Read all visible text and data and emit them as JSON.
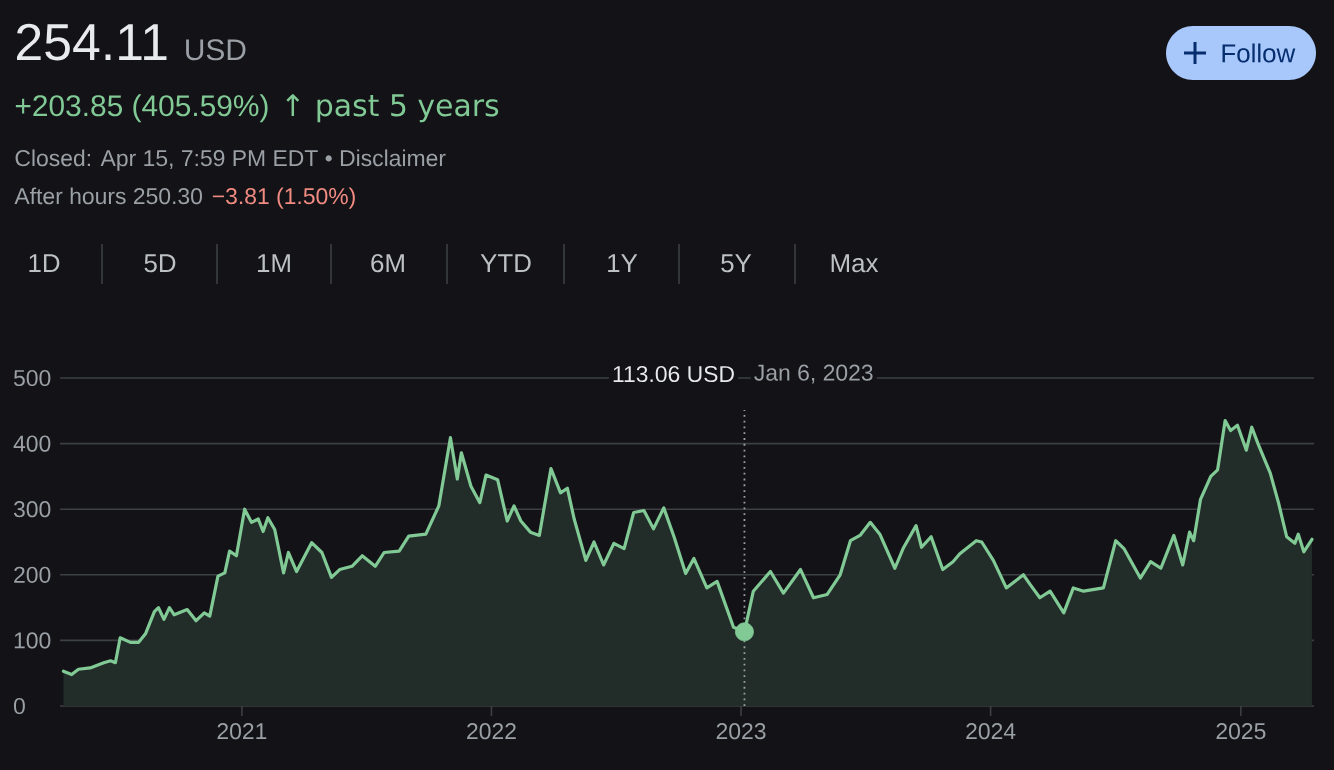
{
  "chart_data": {
    "type": "area",
    "title": "254.11",
    "annotations": [
      "USD",
      "+203.85 (405.59%)",
      "↑ past 5 years",
      "Closed: Apr 15, 7:59 PM EDT • Disclaimer",
      "After hours 250.30",
      "−3.81 (1.50%)",
      "Follow",
      "1D",
      "5D",
      "1M",
      "6M",
      "YTD",
      "1Y",
      "5Y",
      "Max",
      "113.06 USD"
    ],
    "xlim": [
      "2020-04-10",
      "2025-04-18"
    ],
    "xticks": [
      "2021",
      "2022",
      "2023",
      "2024",
      "2025"
    ],
    "ylim": [
      0,
      500
    ],
    "yticks": [
      0,
      100,
      200,
      300,
      400,
      500
    ],
    "grid": "y",
    "ref_lines": [
      {
        "axis": "x",
        "value": "2023-01-06",
        "label": "Jan 6, 2023",
        "line_style": "dotted",
        "color": "#9aa0a6"
      }
    ],
    "series": [
      {
        "type": "scatter",
        "color": "#81c995",
        "marker": "circle",
        "x": [
          "2023-01-06"
        ],
        "values": [
          113.06
        ]
      },
      {
        "color": "#81c995",
        "x": [
          "2020-04-15",
          "2020-04-27",
          "2020-05-07",
          "2020-05-24",
          "2020-06-13",
          "2020-06-23",
          "2020-06-30",
          "2020-07-07",
          "2020-07-22",
          "2020-08-03",
          "2020-08-13",
          "2020-08-26",
          "2020-09-01",
          "2020-09-09",
          "2020-09-17",
          "2020-09-24",
          "2020-10-13",
          "2020-10-26",
          "2020-11-07",
          "2020-11-15",
          "2020-11-27",
          "2020-12-07",
          "2020-12-14",
          "2020-12-24",
          "2021-01-05",
          "2021-01-15",
          "2021-01-25",
          "2021-02-01",
          "2021-02-08",
          "2021-02-18",
          "2021-03-03",
          "2021-03-10",
          "2021-03-22",
          "2021-04-13",
          "2021-04-28",
          "2021-05-12",
          "2021-05-24",
          "2021-06-11",
          "2021-06-26",
          "2021-07-15",
          "2021-07-28",
          "2021-08-19",
          "2021-09-02",
          "2021-09-27",
          "2021-10-16",
          "2021-11-02",
          "2021-11-12",
          "2021-11-18",
          "2021-12-02",
          "2021-12-15",
          "2021-12-24",
          "2022-01-10",
          "2022-01-24",
          "2022-02-03",
          "2022-02-13",
          "2022-02-27",
          "2022-03-12",
          "2022-03-29",
          "2022-04-12",
          "2022-04-22",
          "2022-05-02",
          "2022-05-19",
          "2022-05-31",
          "2022-06-14",
          "2022-06-29",
          "2022-07-14",
          "2022-07-28",
          "2022-08-12",
          "2022-08-26",
          "2022-09-10",
          "2022-09-25",
          "2022-10-12",
          "2022-10-24",
          "2022-11-12",
          "2022-11-27",
          "2022-12-21",
          "2023-01-06",
          "2023-01-19",
          "2023-02-13",
          "2023-03-04",
          "2023-03-29",
          "2023-04-17",
          "2023-05-07",
          "2023-05-26",
          "2023-06-10",
          "2023-06-24",
          "2023-07-09",
          "2023-07-23",
          "2023-08-14",
          "2023-08-26",
          "2023-09-14",
          "2023-09-22",
          "2023-10-06",
          "2023-10-23",
          "2023-11-07",
          "2023-11-17",
          "2023-12-11",
          "2023-12-19",
          "2024-01-05",
          "2024-01-24",
          "2024-02-18",
          "2024-02-28",
          "2024-03-13",
          "2024-03-28",
          "2024-04-17",
          "2024-05-01",
          "2024-05-16",
          "2024-06-14",
          "2024-07-02",
          "2024-07-14",
          "2024-08-07",
          "2024-08-22",
          "2024-09-06",
          "2024-09-25",
          "2024-10-08",
          "2024-10-18",
          "2024-10-24",
          "2024-11-03",
          "2024-11-18",
          "2024-11-28",
          "2024-12-09",
          "2024-12-17",
          "2024-12-27",
          "2025-01-09",
          "2025-01-17",
          "2025-01-26",
          "2025-02-13",
          "2025-02-25",
          "2025-03-09",
          "2025-03-21",
          "2025-03-26",
          "2025-04-03",
          "2025-04-15"
        ],
        "values": [
          53,
          48,
          56,
          58,
          66,
          69,
          66,
          104,
          97,
          97,
          110,
          144,
          150,
          132,
          150,
          139,
          147,
          130,
          142,
          137,
          198,
          203,
          236,
          229,
          300,
          280,
          285,
          266,
          287,
          269,
          203,
          234,
          205,
          249,
          234,
          196,
          208,
          213,
          229,
          213,
          234,
          236,
          259,
          262,
          305,
          409,
          346,
          386,
          335,
          310,
          352,
          345,
          282,
          305,
          282,
          265,
          260,
          362,
          325,
          332,
          285,
          222,
          250,
          215,
          248,
          240,
          295,
          298,
          270,
          302,
          258,
          202,
          225,
          180,
          190,
          120,
          113.06,
          175,
          205,
          172,
          208,
          165,
          170,
          200,
          252,
          260,
          280,
          262,
          210,
          240,
          275,
          242,
          258,
          208,
          220,
          232,
          252,
          250,
          222,
          180,
          200,
          185,
          165,
          175,
          142,
          180,
          175,
          180,
          252,
          240,
          195,
          220,
          210,
          260,
          215,
          265,
          252,
          315,
          350,
          360,
          435,
          420,
          428,
          390,
          425,
          400,
          355,
          310,
          258,
          248,
          262,
          235,
          254.11
        ]
      }
    ]
  }
}
